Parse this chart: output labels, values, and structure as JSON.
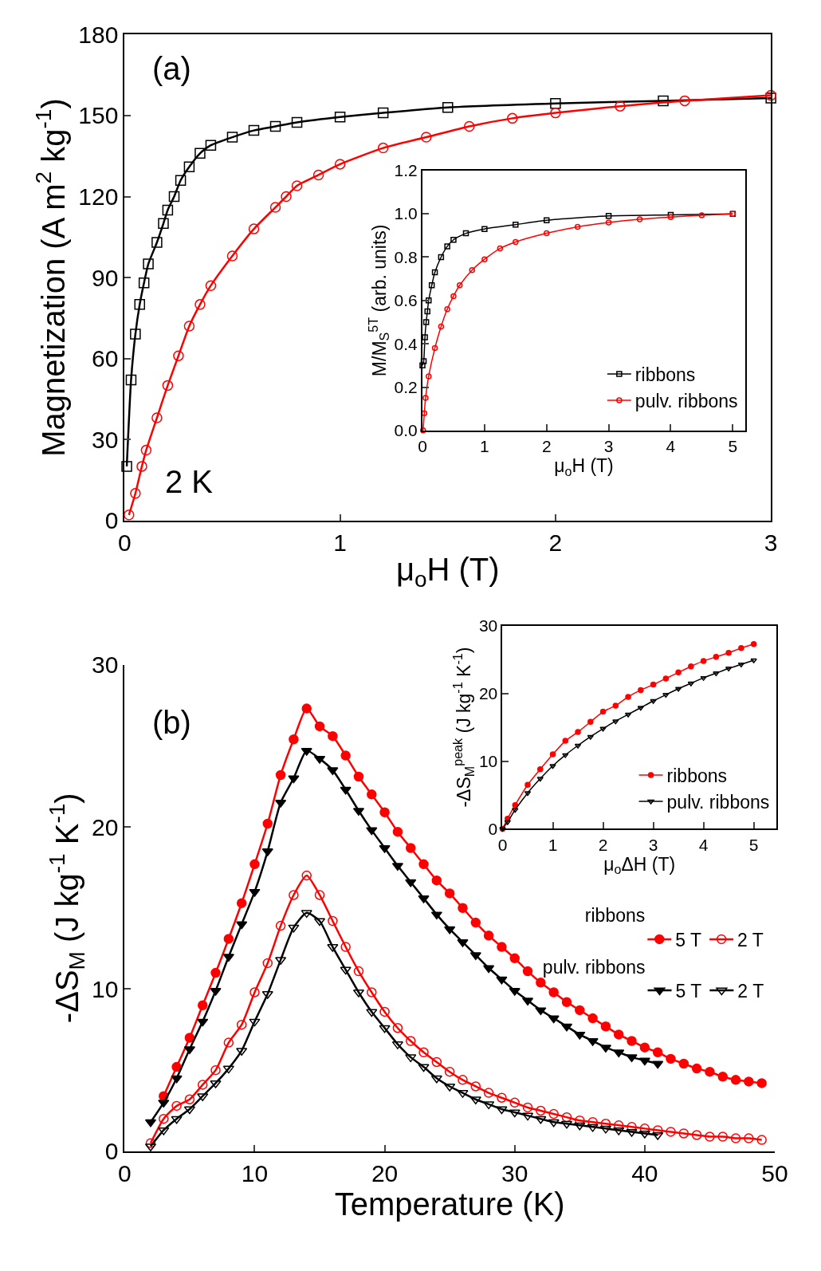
{
  "chart_data": [
    {
      "type": "line",
      "xlabel": "μ$_{o}$H (T)",
      "ylabel": "Magnetization (A m$^{2}$ kg$^{-1}$)",
      "xlim": [
        0,
        3
      ],
      "ylim": [
        0,
        180
      ],
      "xticks": [
        0,
        1,
        2,
        3
      ],
      "yticks": [
        0,
        30,
        60,
        90,
        120,
        150,
        180
      ],
      "legend": false,
      "line_style": "solid",
      "annotations": [
        "(a)",
        "2 K"
      ],
      "series": [
        {
          "color": "#000000",
          "marker": "square-open",
          "x": [
            0.01,
            0.03,
            0.05,
            0.07,
            0.09,
            0.11,
            0.15,
            0.18,
            0.2,
            0.23,
            0.26,
            0.3,
            0.35,
            0.4,
            0.5,
            0.6,
            0.7,
            0.8,
            1.0,
            1.2,
            1.5,
            2.0,
            2.5,
            3.0
          ],
          "values": [
            20,
            52,
            69,
            80,
            88,
            95,
            103,
            110,
            115,
            120,
            126,
            131,
            136,
            139,
            142,
            144.5,
            146,
            147.5,
            149.5,
            151,
            153,
            154.5,
            155.5,
            156.5
          ]
        },
        {
          "color": "#ff0000",
          "marker": "circle-open",
          "x": [
            0.02,
            0.05,
            0.08,
            0.1,
            0.15,
            0.2,
            0.25,
            0.3,
            0.35,
            0.4,
            0.5,
            0.6,
            0.7,
            0.75,
            0.8,
            0.9,
            1.0,
            1.2,
            1.4,
            1.6,
            1.8,
            2.0,
            2.3,
            2.6,
            3.0
          ],
          "values": [
            2,
            10,
            20,
            26,
            38,
            50,
            61,
            72,
            80,
            87,
            98,
            108,
            116,
            120,
            124,
            128,
            132,
            138,
            142,
            146,
            149,
            151,
            153.5,
            155.5,
            157.5
          ]
        }
      ]
    },
    {
      "type": "line",
      "xlabel": "μ$_{o}$H (T)",
      "ylabel": "M/M$_{S}$$^{5T}$ (arb. units)",
      "xlim": [
        0,
        5.2
      ],
      "ylim": [
        0,
        1.2
      ],
      "xticks": [
        0,
        1,
        2,
        3,
        4,
        5
      ],
      "yticks": [
        {
          "value": 0,
          "label": "0.0"
        },
        0.2,
        0.4,
        0.6,
        0.8,
        {
          "value": 1,
          "label": "1.0"
        },
        1.2
      ],
      "legend": "bottom right",
      "line_style": "solid",
      "series": [
        {
          "name": "ribbons",
          "color": "#000000",
          "marker": "square-open",
          "x": [
            0,
            0.02,
            0.04,
            0.06,
            0.08,
            0.1,
            0.15,
            0.2,
            0.3,
            0.4,
            0.5,
            0.7,
            1,
            1.5,
            2,
            3,
            4,
            5
          ],
          "values": [
            0.3,
            0.32,
            0.43,
            0.5,
            0.55,
            0.6,
            0.67,
            0.73,
            0.8,
            0.85,
            0.88,
            0.91,
            0.93,
            0.95,
            0.97,
            0.99,
            0.995,
            1.0
          ]
        },
        {
          "name": "pulv. ribbons",
          "color": "#ff0000",
          "marker": "circle-open",
          "x": [
            0.01,
            0.03,
            0.05,
            0.1,
            0.2,
            0.3,
            0.4,
            0.5,
            0.6,
            0.8,
            1,
            1.25,
            1.5,
            2,
            2.5,
            3,
            3.5,
            4,
            4.5,
            5
          ],
          "values": [
            0.0,
            0.08,
            0.15,
            0.25,
            0.38,
            0.48,
            0.56,
            0.62,
            0.67,
            0.74,
            0.79,
            0.84,
            0.87,
            0.91,
            0.94,
            0.96,
            0.975,
            0.985,
            0.993,
            1.0
          ]
        }
      ]
    },
    {
      "type": "line",
      "xlabel": "Temperature (K)",
      "ylabel": "-ΔS$_{M}$ (J kg$^{-1}$ K$^{-1}$)",
      "xlim": [
        0,
        50
      ],
      "ylim": [
        0,
        30
      ],
      "xticks": [
        0,
        10,
        20,
        30,
        40,
        50
      ],
      "yticks": [
        0,
        10,
        20,
        30
      ],
      "legend": "right",
      "legend_title": [
        "ribbons",
        "pulv. ribbons"
      ],
      "line_style": "solid",
      "annotations": [
        "(b)"
      ],
      "series": [
        {
          "name": "5 T",
          "color": "#ff0000",
          "marker": "circle",
          "x": [
            3,
            4,
            5,
            6,
            7,
            8,
            9,
            10,
            11,
            12,
            13,
            14,
            15,
            16,
            17,
            18,
            19,
            20,
            21,
            22,
            23,
            24,
            25,
            26,
            27,
            28,
            29,
            30,
            31,
            32,
            33,
            34,
            35,
            36,
            37,
            38,
            39,
            40,
            41,
            42,
            43,
            44,
            45,
            46,
            47,
            48,
            49
          ],
          "values": [
            3.4,
            5.2,
            7.0,
            9.0,
            11.0,
            13.1,
            15.3,
            17.7,
            20.2,
            23.2,
            25.4,
            27.3,
            26.2,
            25.6,
            24.4,
            23.1,
            22.0,
            20.9,
            19.7,
            18.7,
            17.7,
            16.7,
            15.9,
            15.0,
            14.1,
            13.3,
            12.6,
            11.9,
            11.1,
            10.4,
            9.8,
            9.2,
            8.7,
            8.2,
            7.7,
            7.2,
            6.8,
            6.4,
            6.1,
            5.7,
            5.4,
            5.1,
            4.9,
            4.6,
            4.4,
            4.3,
            4.2
          ]
        },
        {
          "name": "2 T",
          "color": "#ff0000",
          "marker": "circle-open",
          "x": [
            2,
            3,
            4,
            5,
            6,
            7,
            8,
            9,
            10,
            11,
            12,
            13,
            14,
            15,
            16,
            17,
            18,
            19,
            20,
            21,
            22,
            23,
            24,
            25,
            26,
            27,
            28,
            29,
            30,
            31,
            32,
            33,
            34,
            35,
            36,
            37,
            38,
            39,
            40,
            41,
            42,
            43,
            44,
            45,
            46,
            47,
            48,
            49
          ],
          "values": [
            0.5,
            2.0,
            2.8,
            3.2,
            4.1,
            5.0,
            6.7,
            7.8,
            9.8,
            11.6,
            13.9,
            15.8,
            17.0,
            15.8,
            14.2,
            12.6,
            11.1,
            9.8,
            8.6,
            7.6,
            6.8,
            6.1,
            5.5,
            4.9,
            4.4,
            4.0,
            3.6,
            3.3,
            3.0,
            2.7,
            2.5,
            2.3,
            2.1,
            1.9,
            1.8,
            1.7,
            1.6,
            1.5,
            1.4,
            1.3,
            1.2,
            1.1,
            1.0,
            0.9,
            0.9,
            0.8,
            0.8,
            0.7
          ]
        },
        {
          "name": "5 T",
          "color": "#000000",
          "marker": "triangle-down",
          "x": [
            2,
            3,
            4,
            5,
            6,
            7,
            8,
            9,
            10,
            11,
            12,
            13,
            14,
            15,
            16,
            17,
            18,
            19,
            20,
            21,
            22,
            23,
            24,
            25,
            26,
            27,
            28,
            29,
            30,
            31,
            32,
            33,
            34,
            35,
            36,
            37,
            38,
            39,
            40,
            41
          ],
          "values": [
            1.8,
            3.0,
            4.5,
            6.3,
            8.0,
            9.9,
            12.0,
            14.0,
            16.0,
            18.5,
            21.5,
            23.0,
            24.7,
            24.2,
            23.5,
            22.3,
            21.0,
            19.8,
            18.7,
            17.6,
            16.6,
            15.6,
            14.6,
            13.7,
            12.9,
            12.1,
            11.3,
            10.6,
            9.9,
            9.3,
            8.7,
            8.2,
            7.7,
            7.2,
            6.8,
            6.4,
            6.1,
            5.8,
            5.6,
            5.4
          ]
        },
        {
          "name": "2 T",
          "color": "#000000",
          "marker": "triangle-down-open",
          "x": [
            2,
            3,
            4,
            5,
            6,
            7,
            8,
            9,
            10,
            11,
            12,
            13,
            14,
            15,
            16,
            17,
            18,
            19,
            20,
            21,
            22,
            23,
            24,
            25,
            26,
            27,
            28,
            29,
            30,
            31,
            32,
            33,
            34,
            35,
            36,
            37,
            38,
            39,
            40,
            41
          ],
          "values": [
            0.3,
            1.3,
            2.0,
            2.6,
            3.4,
            4.2,
            5.1,
            6.2,
            8.0,
            9.7,
            11.8,
            13.8,
            14.7,
            14.2,
            12.6,
            11.2,
            9.8,
            8.6,
            7.6,
            6.6,
            5.8,
            5.2,
            4.5,
            4.0,
            3.6,
            3.2,
            2.9,
            2.6,
            2.4,
            2.2,
            2.0,
            1.8,
            1.7,
            1.6,
            1.5,
            1.4,
            1.3,
            1.2,
            1.1,
            1.0
          ]
        }
      ]
    },
    {
      "type": "line",
      "xlabel": "μ$_{o}$ΔH (T)",
      "ylabel": "-ΔS$_{M}$$^{peak}$ (J kg$^{-1}$ K$^{-1}$)",
      "xlim": [
        0,
        5.45
      ],
      "ylim": [
        0,
        30
      ],
      "xticks": [
        0,
        1,
        2,
        3,
        4,
        5
      ],
      "yticks": [
        0,
        10,
        20,
        30
      ],
      "legend": "bottom right",
      "line_style": "solid",
      "series": [
        {
          "name": "ribbons",
          "color": "#ff0000",
          "marker": "circle",
          "x": [
            0,
            0.1,
            0.25,
            0.5,
            0.75,
            1,
            1.25,
            1.5,
            1.75,
            2,
            2.25,
            2.5,
            2.75,
            3,
            3.25,
            3.5,
            3.75,
            4,
            4.25,
            4.5,
            4.75,
            5
          ],
          "values": [
            0,
            1.5,
            3.5,
            6.5,
            8.8,
            11,
            13,
            14.3,
            15.8,
            17.3,
            18.2,
            19.5,
            20.5,
            21.3,
            22.2,
            23.1,
            24,
            24.8,
            25.4,
            26,
            26.7,
            27.3
          ]
        },
        {
          "name": "pulv. ribbons",
          "color": "#000000",
          "marker": "triangle-down-open",
          "x": [
            0,
            0.1,
            0.25,
            0.5,
            0.75,
            1,
            1.25,
            1.5,
            1.75,
            2,
            2.25,
            2.5,
            2.75,
            3,
            3.25,
            3.5,
            3.75,
            4,
            4.25,
            4.5,
            4.75,
            5
          ],
          "values": [
            0,
            1,
            2.8,
            5.3,
            7.4,
            9.3,
            10.9,
            12.3,
            13.6,
            14.8,
            15.9,
            16.9,
            17.9,
            18.9,
            19.8,
            20.7,
            21.5,
            22.3,
            23,
            23.7,
            24.3,
            24.9
          ]
        }
      ]
    }
  ]
}
